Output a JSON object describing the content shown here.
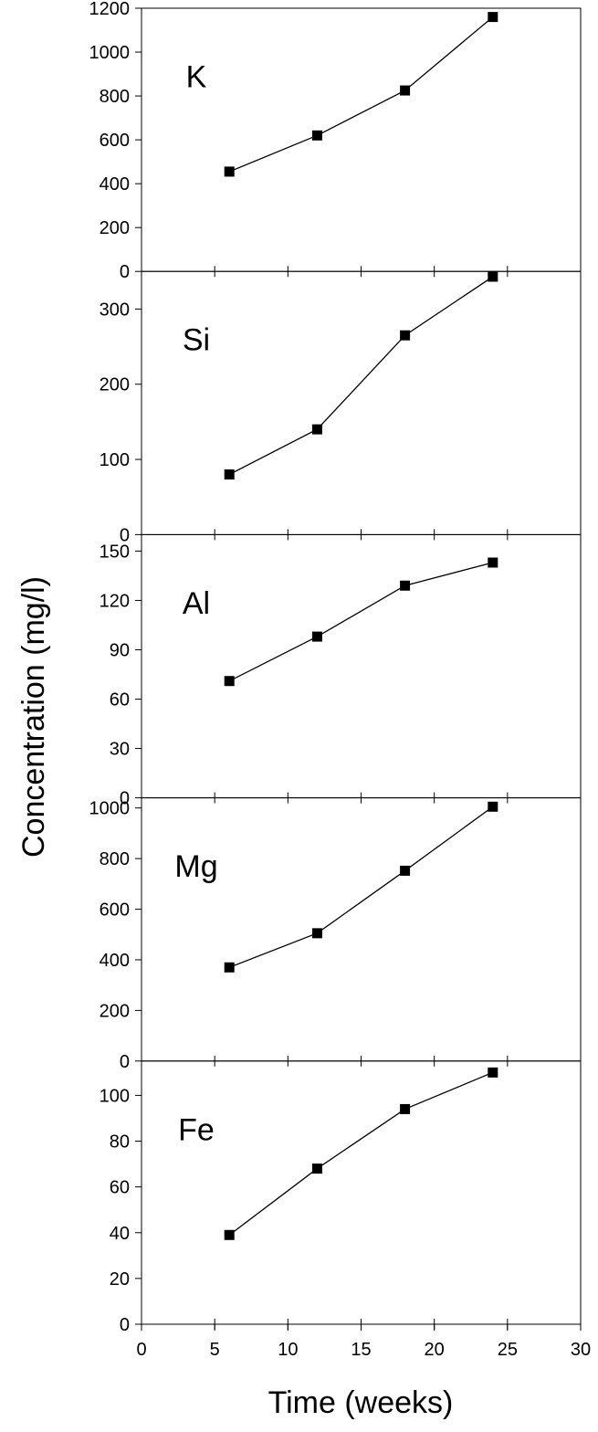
{
  "chart_data": {
    "type": "line",
    "layout": "stacked-panels",
    "xlabel": "Time (weeks)",
    "ylabel": "Concentration (mg/l)",
    "xlim": [
      0,
      30
    ],
    "xticks": [
      0,
      5,
      10,
      15,
      20,
      25,
      30
    ],
    "grid": false,
    "x": [
      6,
      12,
      18,
      24
    ],
    "panels": [
      {
        "label": "K",
        "ylim": [
          0,
          1200
        ],
        "yticks": [
          0,
          200,
          400,
          600,
          800,
          1000,
          1200
        ],
        "values": [
          455,
          620,
          825,
          1160
        ]
      },
      {
        "label": "Si",
        "ylim": [
          0,
          350
        ],
        "yticks": [
          0,
          100,
          200,
          300
        ],
        "values": [
          80,
          140,
          265,
          343
        ]
      },
      {
        "label": "Al",
        "ylim": [
          0,
          160
        ],
        "yticks": [
          0,
          30,
          60,
          90,
          120,
          150
        ],
        "values": [
          71,
          98,
          129,
          143
        ]
      },
      {
        "label": "Mg",
        "ylim": [
          0,
          1040
        ],
        "yticks": [
          0,
          200,
          400,
          600,
          800,
          1000
        ],
        "values": [
          370,
          505,
          752,
          1005
        ]
      },
      {
        "label": "Fe",
        "ylim": [
          0,
          115
        ],
        "yticks": [
          0,
          20,
          40,
          60,
          80,
          100
        ],
        "values": [
          39,
          68,
          94,
          110
        ]
      }
    ],
    "colors": {
      "line": "#000000",
      "marker": "#000000",
      "axis": "#000000"
    }
  }
}
